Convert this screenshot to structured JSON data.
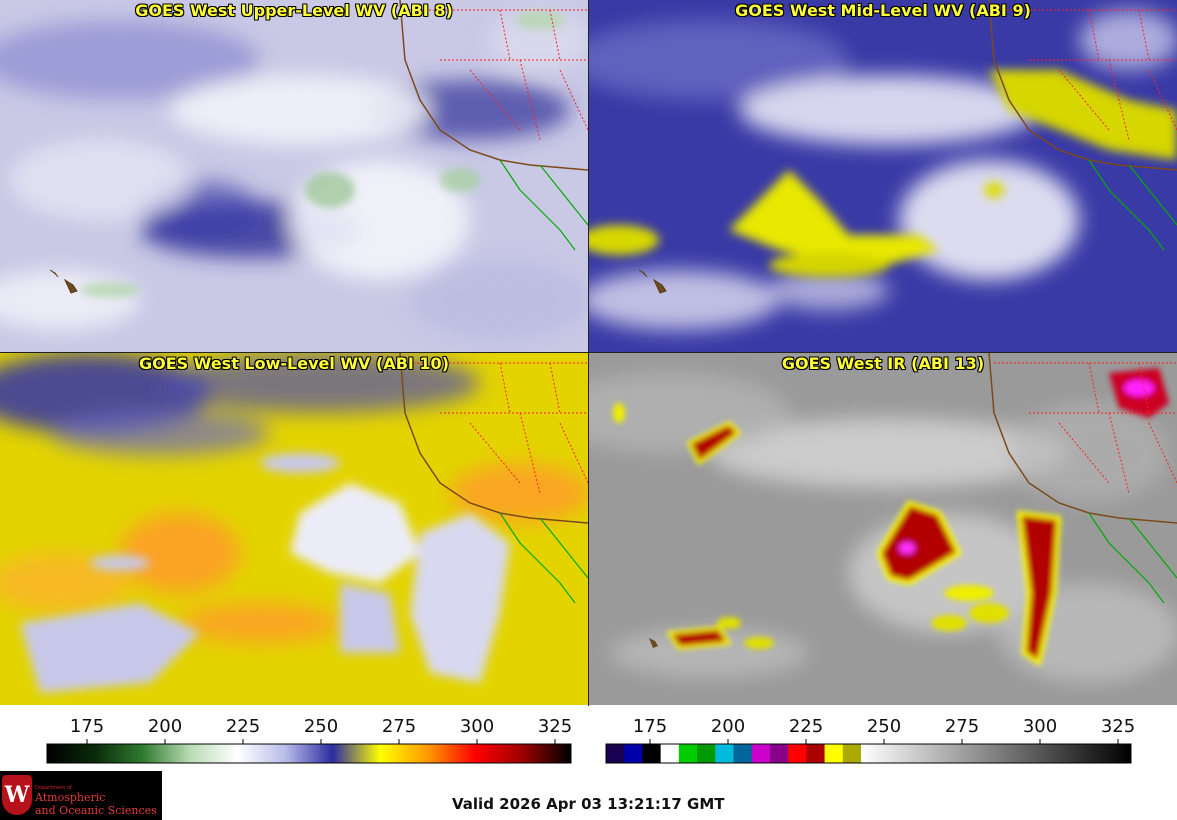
{
  "panels": [
    {
      "title": "GOES West Upper-Level WV (ABI 8)",
      "band": "ABI 8"
    },
    {
      "title": "GOES West Mid-Level WV (ABI 9)",
      "band": "ABI 9"
    },
    {
      "title": "GOES West Low-Level WV (ABI 10)",
      "band": "ABI 10"
    },
    {
      "title": "GOES West IR (ABI 13)",
      "band": "ABI 13"
    }
  ],
  "colorbars": {
    "wv": {
      "ticks": [
        "175",
        "200",
        "225",
        "250",
        "275",
        "300",
        "325"
      ],
      "stops": [
        "#000000",
        "#0a2a0a",
        "#2f7a2f",
        "#b9dcb5",
        "#ffffff",
        "#b8bce8",
        "#2c2ca0",
        "#ffff00",
        "#ff9900",
        "#ff0000",
        "#9a0000",
        "#000000"
      ]
    },
    "ir": {
      "ticks": [
        "175",
        "200",
        "225",
        "250",
        "275",
        "300",
        "325"
      ],
      "blocks": [
        "#1a0050",
        "#0000aa",
        "#000000",
        "#ffffff",
        "#00cc00",
        "#009900",
        "#00bbdd",
        "#006699",
        "#cc00cc",
        "#880088",
        "#ff0000",
        "#aa0000",
        "#ffff00",
        "#aaaa00"
      ]
    }
  },
  "logo": {
    "seal": "W",
    "dept_of": "Department of",
    "line1": "Atmospheric",
    "line2": "and Oceanic Sciences"
  },
  "valid_text": "Valid 2026 Apr 03 13:21:17 GMT",
  "colors": {
    "title_text": "#ffff33",
    "coastline": "#7a4a1a",
    "state_borders": "#ff2020",
    "mexico_coast": "#00aa00"
  }
}
